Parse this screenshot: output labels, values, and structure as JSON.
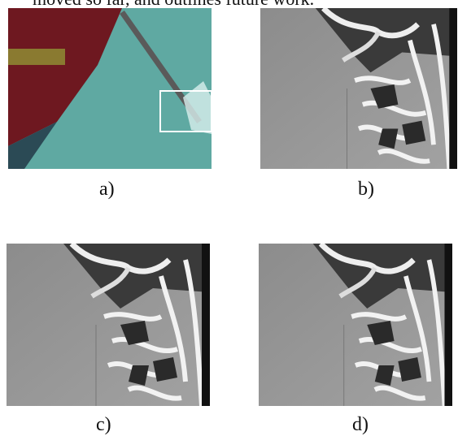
{
  "header": {
    "text": "moved so far, and outlines future work."
  },
  "panels": [
    {
      "label": "a)"
    },
    {
      "label": "b)"
    },
    {
      "label": "c)"
    },
    {
      "label": "d)"
    }
  ]
}
